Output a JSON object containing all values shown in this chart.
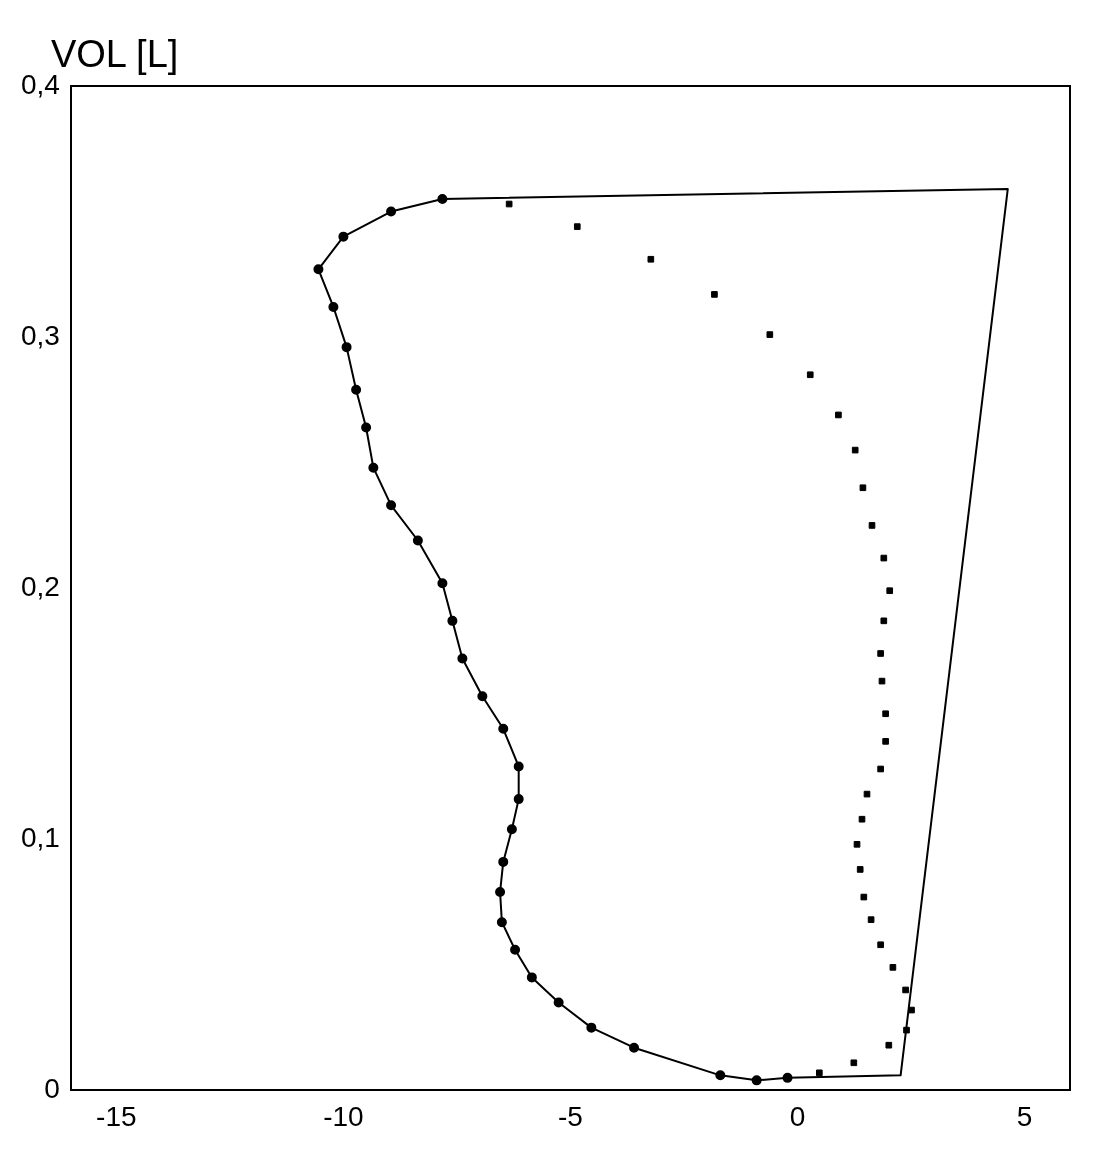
{
  "chart_data": {
    "type": "line",
    "ylabel": "VOL [L]",
    "xlim": [
      -16,
      6
    ],
    "ylim": [
      0,
      0.4
    ],
    "xticks": [
      -15,
      -10,
      -5,
      0,
      5
    ],
    "yticks": [
      0,
      {
        "value": 0.1,
        "label": "0,1"
      },
      {
        "value": 0.2,
        "label": "0,2"
      },
      {
        "value": 0.3,
        "label": "0,3"
      },
      {
        "value": 0.4,
        "label": "0,4"
      }
    ],
    "grid": false,
    "legend": false,
    "series": [
      {
        "type": "line",
        "marker": "circle",
        "color": "#000000",
        "x": [
          -0.22,
          -0.9,
          -1.7,
          -3.6,
          -4.54,
          -5.26,
          -5.85,
          -6.22,
          -6.51,
          -6.55,
          -6.48,
          -6.29,
          -6.14,
          -6.14,
          -6.48,
          -6.94,
          -7.38,
          -7.6,
          -7.82,
          -8.36,
          -8.95,
          -9.34,
          -9.5,
          -9.72,
          -9.93,
          -10.22,
          -10.55,
          -10.0,
          -8.95,
          -7.82
        ],
        "values": [
          0.005,
          0.004,
          0.006,
          0.017,
          0.025,
          0.035,
          0.045,
          0.056,
          0.067,
          0.079,
          0.091,
          0.104,
          0.116,
          0.129,
          0.144,
          0.157,
          0.172,
          0.187,
          0.202,
          0.219,
          0.233,
          0.248,
          0.264,
          0.279,
          0.296,
          0.312,
          0.327,
          0.34,
          0.35,
          0.355
        ]
      },
      {
        "type": "line",
        "marker": "none",
        "color": "#000000",
        "x": [
          -7.82,
          4.63,
          2.27,
          -0.22
        ],
        "values": [
          0.355,
          0.359,
          0.006,
          0.005
        ]
      },
      {
        "type": "scatter",
        "marker": "square",
        "color": "#000000",
        "x": [
          -6.35,
          -4.85,
          -3.23,
          -1.83,
          -0.61,
          0.28,
          0.9,
          1.27,
          1.44,
          1.64,
          1.9,
          2.03,
          1.9,
          1.83,
          1.86,
          1.94,
          1.94,
          1.83,
          1.53,
          1.42,
          1.31,
          1.38,
          1.46,
          1.62,
          1.83,
          2.1,
          2.38,
          2.51,
          2.4,
          2.01,
          1.24,
          0.48
        ],
        "values": [
          0.353,
          0.344,
          0.331,
          0.317,
          0.301,
          0.285,
          0.269,
          0.255,
          0.24,
          0.225,
          0.212,
          0.199,
          0.187,
          0.174,
          0.163,
          0.15,
          0.139,
          0.128,
          0.118,
          0.108,
          0.098,
          0.088,
          0.077,
          0.068,
          0.058,
          0.049,
          0.04,
          0.032,
          0.024,
          0.018,
          0.011,
          0.007
        ]
      }
    ]
  }
}
